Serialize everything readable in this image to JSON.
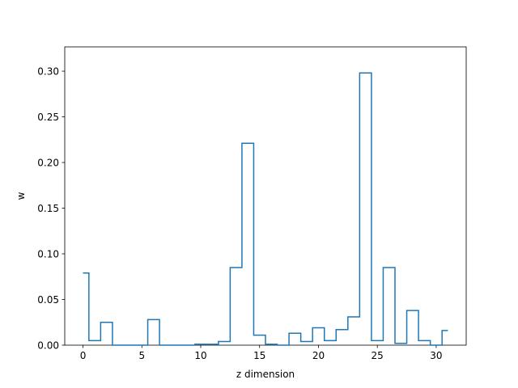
{
  "chart_data": {
    "type": "line",
    "step": "post",
    "xlabel": "z dimension",
    "ylabel": "w",
    "xlim": [
      -1.55,
      32.55
    ],
    "ylim": [
      0.0,
      0.3266
    ],
    "xticks": [
      0,
      5,
      10,
      15,
      20,
      25,
      30
    ],
    "xtick_labels": [
      "0",
      "5",
      "10",
      "15",
      "20",
      "25",
      "30"
    ],
    "yticks": [
      0.0,
      0.05,
      0.1,
      0.15,
      0.2,
      0.25,
      0.3
    ],
    "ytick_labels": [
      "0.00",
      "0.05",
      "0.10",
      "0.15",
      "0.20",
      "0.25",
      "0.30"
    ],
    "grid": false,
    "legend": "none",
    "line_color": "#1f77b4",
    "series": [
      {
        "x": [
          0,
          0.5,
          1.5,
          2.5,
          3.5,
          4.5,
          5.5,
          6.5,
          7.5,
          8.5,
          9.5,
          10.5,
          11.5,
          12.5,
          13.5,
          14.5,
          15.5,
          16.5,
          17.5,
          18.5,
          19.5,
          20.5,
          21.5,
          22.5,
          23.5,
          24.5,
          25.5,
          26.5,
          27.5,
          28.5,
          29.5,
          30.5,
          31
        ],
        "values": [
          0.079,
          0.005,
          0.025,
          0.0,
          0.0,
          0.0,
          0.028,
          0.0,
          0.0,
          0.0,
          0.001,
          0.001,
          0.004,
          0.085,
          0.221,
          0.011,
          0.001,
          0.0,
          0.013,
          0.004,
          0.019,
          0.005,
          0.017,
          0.031,
          0.298,
          0.005,
          0.085,
          0.002,
          0.038,
          0.005,
          0.0,
          0.016,
          0.016
        ]
      }
    ]
  }
}
